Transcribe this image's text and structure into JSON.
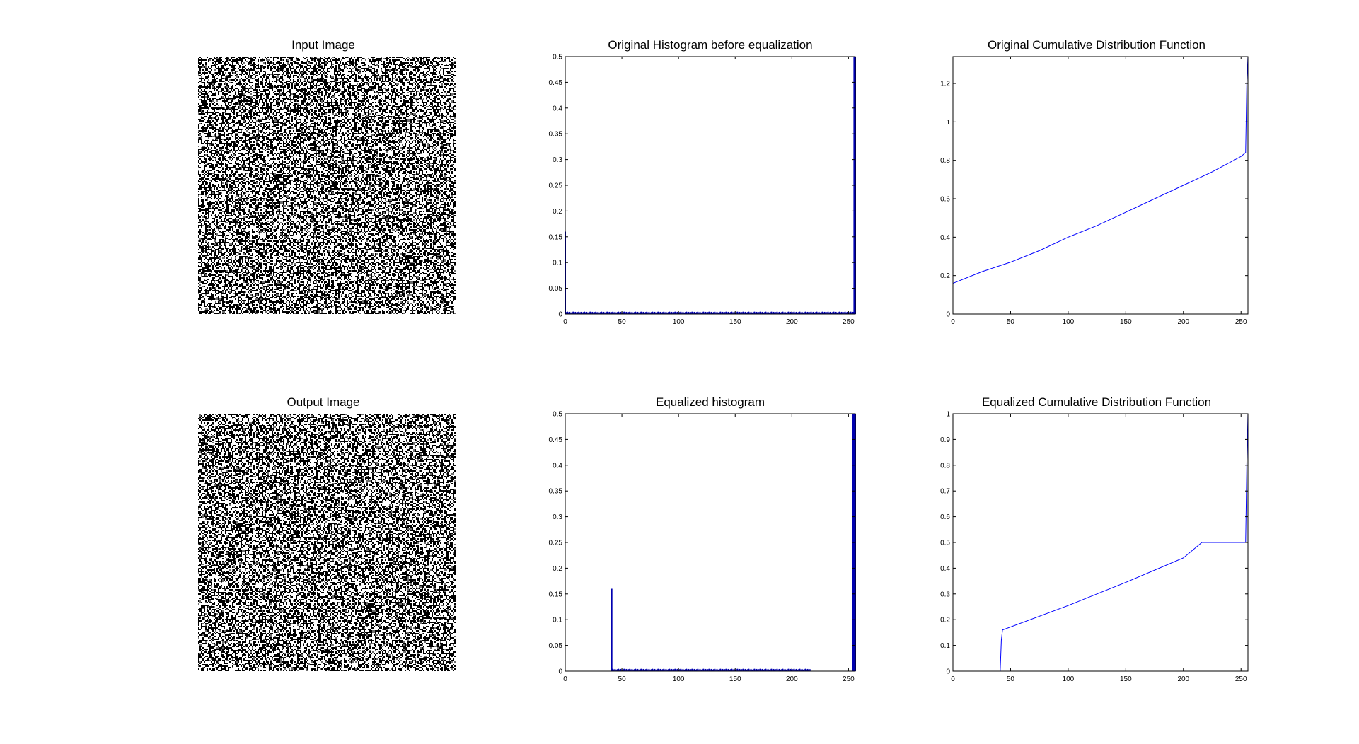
{
  "figure": {
    "colors": {
      "line": "#0000ff",
      "hist": "#0000b0",
      "axis": "#000000",
      "background": "#ffffff"
    }
  },
  "chart_data": [
    {
      "id": "input-image",
      "type": "image",
      "title": "Input Image",
      "description_content": "random binary noise pattern (black/white pixels)"
    },
    {
      "id": "orig-hist",
      "type": "bar",
      "title": "Original Histogram before equalization",
      "xlim": [
        0,
        256
      ],
      "ylim": [
        0,
        0.5
      ],
      "xticks": [
        0,
        50,
        100,
        150,
        200,
        250
      ],
      "yticks": [
        0,
        0.05,
        0.1,
        0.15,
        0.2,
        0.25,
        0.3,
        0.35,
        0.4,
        0.45,
        0.5
      ],
      "ytick_labels": [
        "0",
        "0.05",
        "0.1",
        "0.15",
        "0.2",
        "0.25",
        "0.3",
        "0.35",
        "0.4",
        "0.45",
        "0.5"
      ],
      "spikes": [
        [
          0,
          0.16
        ],
        [
          255,
          0.5
        ],
        [
          256,
          0.5
        ]
      ],
      "floor_range": [
        1,
        254
      ],
      "floor_level": 0.003
    },
    {
      "id": "orig-cdf",
      "type": "line",
      "title": "Original Cumulative Distribution Function",
      "xlim": [
        0,
        256
      ],
      "ylim": [
        0,
        1.34
      ],
      "xticks": [
        0,
        50,
        100,
        150,
        200,
        250
      ],
      "yticks": [
        0,
        0.2,
        0.4,
        0.6,
        0.8,
        1,
        1.2
      ],
      "ytick_labels": [
        "0",
        "0.2",
        "0.4",
        "0.6",
        "0.8",
        "1",
        "1.2"
      ],
      "x": [
        0,
        25,
        50,
        75,
        100,
        125,
        150,
        175,
        200,
        225,
        250,
        254,
        255,
        256
      ],
      "y": [
        0.16,
        0.22,
        0.27,
        0.33,
        0.4,
        0.46,
        0.53,
        0.6,
        0.67,
        0.74,
        0.82,
        0.84,
        1.2,
        1.34
      ]
    },
    {
      "id": "output-image",
      "type": "image",
      "title": "Output Image",
      "description_content": "random binary noise pattern (black/white pixels)"
    },
    {
      "id": "eq-hist",
      "type": "bar",
      "title": "Equalized histogram",
      "xlim": [
        0,
        256
      ],
      "ylim": [
        0,
        0.5
      ],
      "xticks": [
        0,
        50,
        100,
        150,
        200,
        250
      ],
      "yticks": [
        0,
        0.05,
        0.1,
        0.15,
        0.2,
        0.25,
        0.3,
        0.35,
        0.4,
        0.45,
        0.5
      ],
      "ytick_labels": [
        "0",
        "0.05",
        "0.1",
        "0.15",
        "0.2",
        "0.25",
        "0.3",
        "0.35",
        "0.4",
        "0.45",
        "0.5"
      ],
      "spikes": [
        [
          41,
          0.16
        ],
        [
          254,
          0.5
        ],
        [
          255,
          0.5
        ],
        [
          256,
          0.5
        ]
      ],
      "floor_range": [
        42,
        216
      ],
      "floor_level": 0.003
    },
    {
      "id": "eq-cdf",
      "type": "line",
      "title": "Equalized Cumulative Distribution Function",
      "xlim": [
        0,
        256
      ],
      "ylim": [
        0,
        1
      ],
      "xticks": [
        0,
        50,
        100,
        150,
        200,
        250
      ],
      "yticks": [
        0,
        0.1,
        0.2,
        0.3,
        0.4,
        0.5,
        0.6,
        0.7,
        0.8,
        0.9,
        1
      ],
      "ytick_labels": [
        "0",
        "0.1",
        "0.2",
        "0.3",
        "0.4",
        "0.5",
        "0.6",
        "0.7",
        "0.8",
        "0.9",
        "1"
      ],
      "x": [
        41,
        42,
        43,
        100,
        150,
        200,
        216,
        254,
        255,
        256
      ],
      "y": [
        0,
        0.12,
        0.16,
        0.255,
        0.345,
        0.44,
        0.5,
        0.5,
        0.8,
        1
      ]
    }
  ]
}
